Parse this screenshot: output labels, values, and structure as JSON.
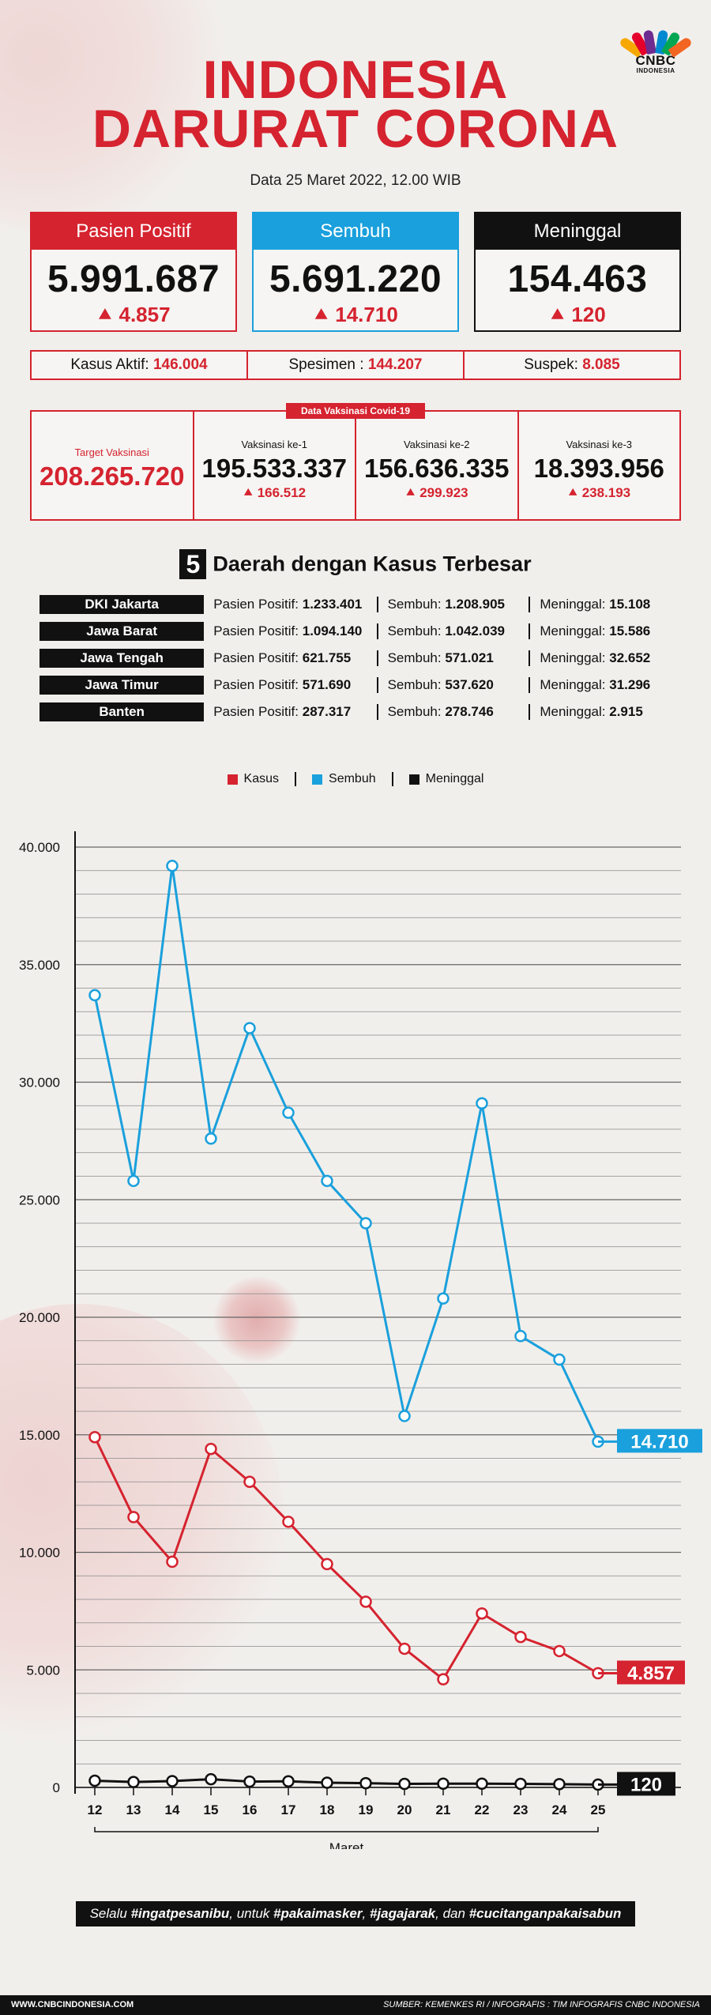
{
  "header": {
    "title_line1": "INDONESIA",
    "title_line2": "DARURAT CORONA",
    "subtitle": "Data 25 Maret 2022, 12.00 WIB",
    "logo_line1": "CNBC",
    "logo_line2": "INDONESIA"
  },
  "stats": {
    "positif": {
      "label": "Pasien Positif",
      "value": "5.991.687",
      "delta": "4.857"
    },
    "sembuh": {
      "label": "Sembuh",
      "value": "5.691.220",
      "delta": "14.710"
    },
    "meninggal": {
      "label": "Meninggal",
      "value": "154.463",
      "delta": "120"
    }
  },
  "row2": {
    "aktif_label": "Kasus Aktif:",
    "aktif_value": "146.004",
    "spesimen_label": "Spesimen :",
    "spesimen_value": "144.207",
    "suspek_label": "Suspek:",
    "suspek_value": "8.085"
  },
  "vaksin": {
    "tag": "Data Vaksinasi Covid-19",
    "target_label": "Target Vaksinasi",
    "target_value": "208.265.720",
    "dose1_label": "Vaksinasi ke-1",
    "dose1_value": "195.533.337",
    "dose1_delta": "166.512",
    "dose2_label": "Vaksinasi ke-2",
    "dose2_value": "156.636.335",
    "dose2_delta": "299.923",
    "dose3_label": "Vaksinasi ke-3",
    "dose3_value": "18.393.956",
    "dose3_delta": "238.193"
  },
  "regions": {
    "title_num": "5",
    "title_text": "Daerah dengan Kasus Terbesar",
    "rows": [
      {
        "name": "DKI Jakarta",
        "positif_label": "Pasien Positif:",
        "positif": "1.233.401",
        "sembuh_label": "Sembuh:",
        "sembuh": "1.208.905",
        "meninggal_label": "Meninggal:",
        "meninggal": "15.108"
      },
      {
        "name": "Jawa Barat",
        "positif_label": "Pasien Positif:",
        "positif": "1.094.140",
        "sembuh_label": "Sembuh:",
        "sembuh": "1.042.039",
        "meninggal_label": "Meninggal:",
        "meninggal": "15.586"
      },
      {
        "name": "Jawa Tengah",
        "positif_label": "Pasien Positif:",
        "positif": "621.755",
        "sembuh_label": "Sembuh:",
        "sembuh": "571.021",
        "meninggal_label": "Meninggal:",
        "meninggal": "32.652"
      },
      {
        "name": "Jawa Timur",
        "positif_label": "Pasien Positif:",
        "positif": "571.690",
        "sembuh_label": "Sembuh:",
        "sembuh": "537.620",
        "meninggal_label": "Meninggal:",
        "meninggal": "31.296"
      },
      {
        "name": "Banten",
        "positif_label": "Pasien Positif:",
        "positif": "287.317",
        "sembuh_label": "Sembuh:",
        "sembuh": "278.746",
        "meninggal_label": "Meninggal:",
        "meninggal": "2.915"
      }
    ]
  },
  "chart_data": {
    "type": "line",
    "x": [
      12,
      13,
      14,
      15,
      16,
      17,
      18,
      19,
      20,
      21,
      22,
      23,
      24,
      25
    ],
    "xlabel": "Maret",
    "ylabel": "",
    "ylim": [
      0,
      40000
    ],
    "yticks": [
      "0",
      "5.000",
      "10.000",
      "15.000",
      "20.000",
      "25.000",
      "30.000",
      "35.000",
      "40.000"
    ],
    "grid": true,
    "legend_position": "top-center",
    "series": [
      {
        "name": "Kasus",
        "color": "#d5232f",
        "values": [
          14900,
          11500,
          9600,
          14400,
          13000,
          11300,
          9500,
          7900,
          5900,
          4600,
          7400,
          6400,
          5800,
          4857
        ],
        "end_label": "4.857"
      },
      {
        "name": "Sembuh",
        "color": "#1aa0dc",
        "values": [
          33700,
          25800,
          39200,
          27600,
          32300,
          28700,
          25800,
          24000,
          15800,
          20800,
          29100,
          19200,
          18200,
          14710
        ],
        "end_label": "14.710"
      },
      {
        "name": "Meninggal",
        "color": "#111111",
        "values": [
          285,
          230,
          270,
          350,
          250,
          260,
          200,
          180,
          150,
          160,
          160,
          150,
          140,
          120
        ],
        "end_label": "120"
      }
    ]
  },
  "slogan": {
    "p1": "Selalu ",
    "h1": "#ingatpesanibu",
    "p2": ", untuk ",
    "h2": "#pakaimasker",
    "p3": ", ",
    "h3": "#jagajarak",
    "p4": ", dan ",
    "h4": "#cucitanganpakaisabun"
  },
  "footer": {
    "site": "WWW.CNBCINDONESIA.COM",
    "source": "SUMBER: KEMENKES RI / INFOGRAFIS : TIM INFOGRAFIS CNBC INDONESIA"
  },
  "colors": {
    "red": "#d5232f",
    "blue": "#1aa0dc",
    "black": "#111111"
  }
}
